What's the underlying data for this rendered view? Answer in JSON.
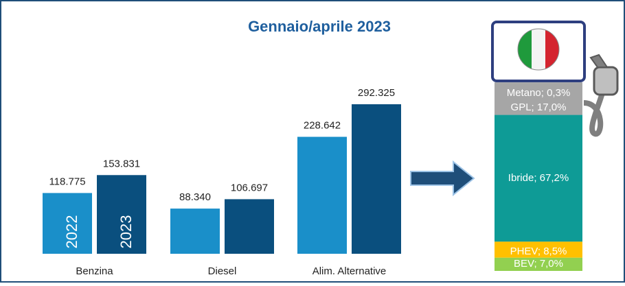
{
  "chart_data": [
    {
      "type": "bar",
      "title": "Gennaio/aprile 2023",
      "categories": [
        "Benzina",
        "Diesel",
        "Alim. Alternative"
      ],
      "series": [
        {
          "name": "2022",
          "color": "#1a8fc9",
          "values": [
            118775,
            88340,
            228642
          ],
          "value_labels": [
            "118.775",
            "88.340",
            "228.642"
          ]
        },
        {
          "name": "2023",
          "color": "#0a4f7e",
          "values": [
            153831,
            106697,
            292325
          ],
          "value_labels": [
            "153.831",
            "106.697",
            "292.325"
          ]
        }
      ]
    },
    {
      "type": "stacked",
      "categories": [
        "Metano",
        "GPL",
        "Ibride",
        "PHEV",
        "BEV"
      ],
      "values": [
        0.3,
        17.0,
        67.2,
        8.5,
        7.0
      ],
      "value_labels": [
        "Metano; 0,3%",
        "GPL; 17,0%",
        "Ibride; 67,2%",
        "PHEV; 8,5%",
        "BEV; 7,0%"
      ],
      "colors": [
        "#a6a6a6",
        "#a6a6a6",
        "#0e9b96",
        "#ffc000",
        "#92d050"
      ]
    }
  ]
}
